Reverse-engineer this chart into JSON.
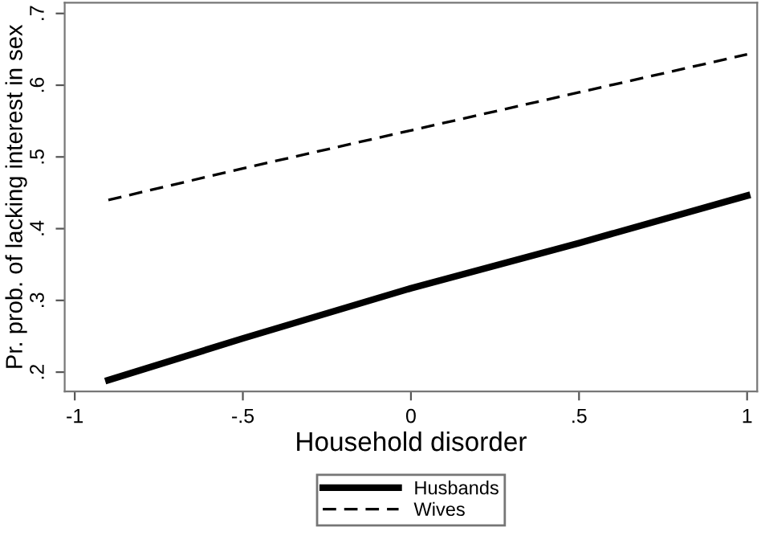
{
  "chart_data": {
    "type": "line",
    "xlabel": "Household disorder",
    "ylabel": "Pr. prob. of lacking interest in sex",
    "x": [
      -0.9,
      -0.5,
      0,
      0.5,
      1
    ],
    "series": [
      {
        "name": "Husbands",
        "color": "#000000",
        "values": [
          0.189,
          0.247,
          0.317,
          0.38,
          0.446
        ],
        "line_style": "solid"
      },
      {
        "name": "Wives",
        "color": "#000000",
        "values": [
          0.44,
          0.484,
          0.537,
          0.59,
          0.643
        ],
        "line_style": "dashed"
      }
    ],
    "xlim": [
      -1.03,
      1.03
    ],
    "ylim": [
      0.173,
      0.715
    ],
    "xticks": [
      -1,
      {
        "value": -0.5,
        "label": "-.5"
      },
      0,
      {
        "value": 0.5,
        "label": ".5"
      },
      1
    ],
    "yticks": [
      {
        "value": 0.2,
        "label": ".2"
      },
      {
        "value": 0.3,
        "label": ".3"
      },
      {
        "value": 0.4,
        "label": ".4"
      },
      {
        "value": 0.5,
        "label": ".5"
      },
      {
        "value": 0.6,
        "label": ".6"
      },
      {
        "value": 0.7,
        "label": ".7"
      }
    ],
    "grid": false,
    "legend": "bottom"
  }
}
